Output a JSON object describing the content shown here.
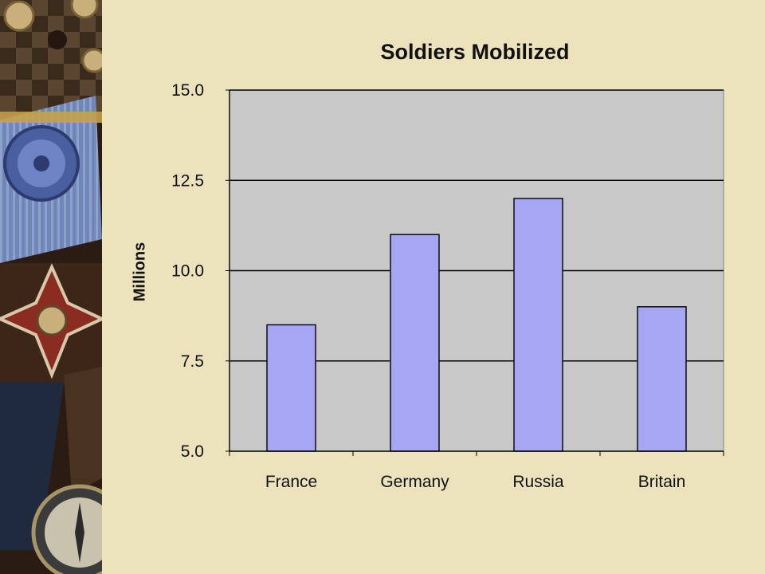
{
  "chart_data": {
    "type": "bar",
    "title": "Soldiers Mobilized",
    "xlabel": "",
    "ylabel": "Millions",
    "categories": [
      "France",
      "Germany",
      "Russia",
      "Britain"
    ],
    "values": [
      8.5,
      11.0,
      12.0,
      9.0
    ],
    "ylim": [
      5.0,
      15.0
    ],
    "yticks": [
      "5.0",
      "7.5",
      "10.0",
      "12.5",
      "15.0"
    ],
    "ytick_values": [
      5.0,
      7.5,
      10.0,
      12.5,
      15.0
    ],
    "grid": true,
    "legend": "none",
    "colors": {
      "bar": "#a6a6f5",
      "plot_background": "#c8c8c8",
      "page_background": "#ece3bd"
    }
  },
  "decor": {
    "side_image": "war-medals-and-compass"
  }
}
